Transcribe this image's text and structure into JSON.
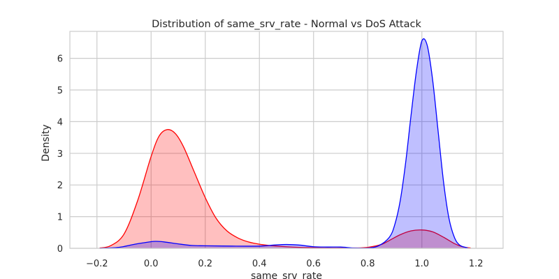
{
  "chart_data": {
    "type": "area",
    "title": "Distribution of same_srv_rate - Normal vs DoS Attack",
    "xlabel": "same_srv_rate",
    "ylabel": "Density",
    "xlim": [
      -0.3,
      1.3
    ],
    "ylim": [
      0,
      6.85
    ],
    "xticks": [
      -0.2,
      0.0,
      0.2,
      0.4,
      0.6,
      0.8,
      1.0,
      1.2
    ],
    "xtick_labels": [
      "−0.2",
      "0.0",
      "0.2",
      "0.4",
      "0.6",
      "0.8",
      "1.0",
      "1.2"
    ],
    "yticks": [
      0,
      1,
      2,
      3,
      4,
      5,
      6
    ],
    "ytick_labels": [
      "0",
      "1",
      "2",
      "3",
      "4",
      "5",
      "6"
    ],
    "grid": true,
    "series": [
      {
        "color": "#ff0000",
        "fill": "#ff0000",
        "fill_opacity": 0.25,
        "x": [
          -0.19,
          -0.15,
          -0.1,
          -0.05,
          0.0,
          0.03,
          0.06,
          0.09,
          0.12,
          0.16,
          0.2,
          0.24,
          0.28,
          0.32,
          0.36,
          0.4,
          0.45,
          0.5,
          0.55,
          0.6,
          0.65,
          0.7,
          0.75,
          0.8,
          0.85,
          0.88,
          0.92,
          0.96,
          1.0,
          1.04,
          1.08,
          1.12,
          1.15,
          1.18
        ],
        "y": [
          0.01,
          0.08,
          0.45,
          1.5,
          2.9,
          3.55,
          3.75,
          3.62,
          3.2,
          2.4,
          1.6,
          0.95,
          0.55,
          0.33,
          0.2,
          0.13,
          0.08,
          0.05,
          0.03,
          0.02,
          0.01,
          0.01,
          0.01,
          0.03,
          0.12,
          0.25,
          0.43,
          0.55,
          0.58,
          0.52,
          0.35,
          0.15,
          0.05,
          0.01
        ]
      },
      {
        "color": "#0000ff",
        "fill": "#0000ff",
        "fill_opacity": 0.25,
        "x": [
          -0.19,
          -0.12,
          -0.06,
          0.0,
          0.02,
          0.05,
          0.1,
          0.15,
          0.2,
          0.3,
          0.4,
          0.45,
          0.5,
          0.55,
          0.6,
          0.65,
          0.7,
          0.75,
          0.8,
          0.84,
          0.88,
          0.9,
          0.92,
          0.94,
          0.96,
          0.98,
          1.0,
          1.02,
          1.04,
          1.06,
          1.08,
          1.1,
          1.12,
          1.14,
          1.17
        ],
        "y": [
          0.0,
          0.03,
          0.13,
          0.21,
          0.22,
          0.2,
          0.14,
          0.09,
          0.08,
          0.07,
          0.07,
          0.1,
          0.12,
          0.1,
          0.05,
          0.04,
          0.04,
          0.01,
          0.01,
          0.08,
          0.35,
          0.75,
          1.5,
          2.7,
          4.2,
          5.6,
          6.55,
          6.4,
          5.3,
          3.7,
          2.1,
          0.95,
          0.35,
          0.1,
          0.01
        ]
      }
    ]
  }
}
